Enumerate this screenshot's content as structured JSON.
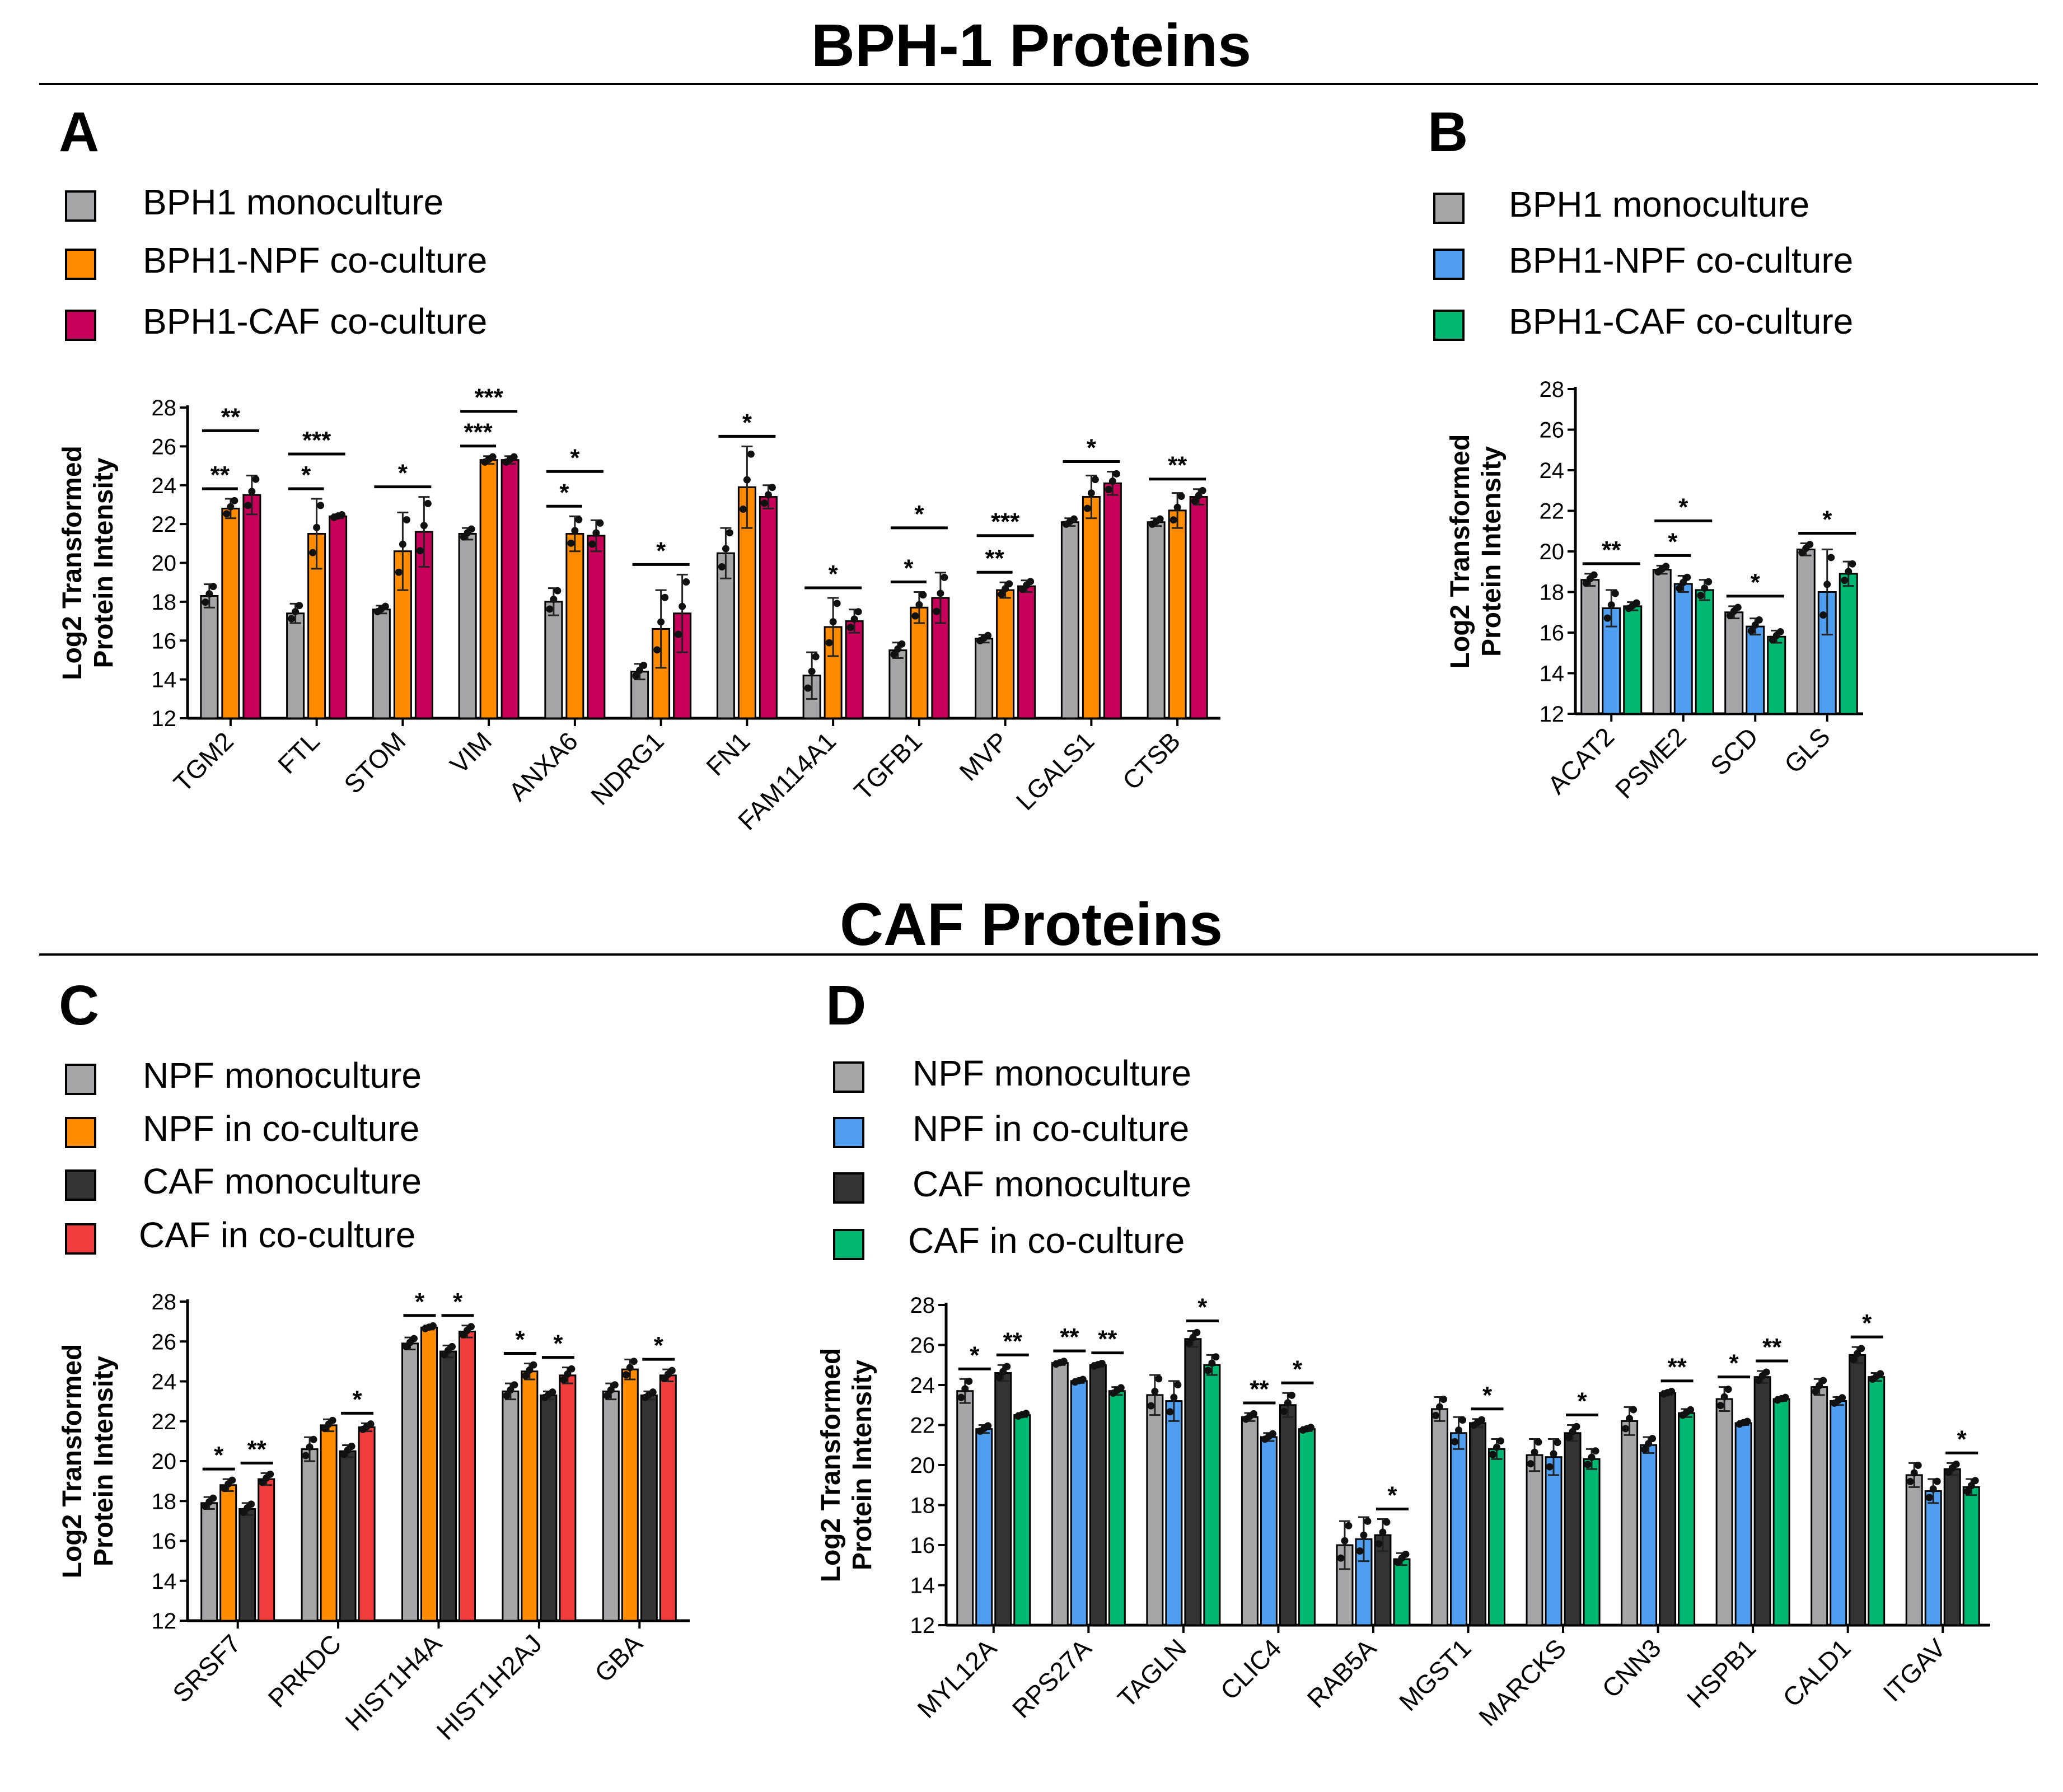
{
  "sections": [
    {
      "title": "BPH-1 Proteins"
    },
    {
      "title": "CAF Proteins"
    }
  ],
  "panels": {
    "A": {
      "letter": "A",
      "legend": [
        "BPH1 monoculture",
        "BPH1-NPF co-culture",
        "BPH1-CAF co-culture"
      ],
      "colors": [
        "#a6a6a8",
        "#ff8c00",
        "#c7005a"
      ]
    },
    "B": {
      "letter": "B",
      "legend": [
        "BPH1 monoculture",
        "BPH1-NPF co-culture",
        "BPH1-CAF co-culture"
      ],
      "colors": [
        "#a6a6a8",
        "#4f9ef0",
        "#00b871"
      ]
    },
    "C": {
      "letter": "C",
      "legend": [
        "NPF monoculture",
        "NPF in co-culture",
        "CAF monoculture",
        "CAF in co-culture"
      ],
      "colors": [
        "#a6a6a8",
        "#ff8c00",
        "#333333",
        "#f03c3c"
      ]
    },
    "D": {
      "letter": "D",
      "legend": [
        "NPF monoculture",
        "NPF in co-culture",
        "CAF monoculture",
        "CAF in co-culture"
      ],
      "colors": [
        "#a6a6a8",
        "#4f9ef0",
        "#333333",
        "#00b871"
      ]
    }
  },
  "chart_data": [
    {
      "panel": "A",
      "type": "bar",
      "ylabel": "Log2 Transformed Protein Intensity",
      "ylim": [
        12,
        28
      ],
      "yticks": [
        12,
        14,
        16,
        18,
        20,
        22,
        24,
        26,
        28
      ],
      "categories": [
        "TGM2",
        "FTL",
        "STOM",
        "VIM",
        "ANXA6",
        "NDRG1",
        "FN1",
        "FAM114A1",
        "TGFB1",
        "MVP",
        "LGALS1",
        "CTSB"
      ],
      "series": [
        {
          "name": "BPH1 monoculture",
          "values": [
            18.3,
            17.4,
            17.6,
            21.5,
            18.0,
            14.4,
            20.5,
            14.2,
            15.5,
            16.1,
            22.1,
            22.1
          ],
          "err": [
            0.6,
            0.5,
            0.2,
            0.3,
            0.7,
            0.4,
            1.3,
            1.2,
            0.4,
            0.2,
            0.2,
            0.2
          ]
        },
        {
          "name": "BPH1-NPF co-culture",
          "values": [
            22.8,
            21.5,
            20.6,
            25.3,
            21.5,
            16.6,
            23.9,
            16.7,
            17.7,
            18.6,
            23.4,
            22.7
          ],
          "err": [
            0.5,
            1.8,
            2.0,
            0.2,
            0.9,
            2.0,
            2.1,
            1.5,
            0.8,
            0.4,
            1.1,
            0.9
          ]
        },
        {
          "name": "BPH1-CAF co-culture",
          "values": [
            23.5,
            22.4,
            21.6,
            25.3,
            21.4,
            17.4,
            23.4,
            17.0,
            18.2,
            18.8,
            24.1,
            23.4
          ],
          "err": [
            1.0,
            0.1,
            1.8,
            0.2,
            0.8,
            2.0,
            0.6,
            0.6,
            1.3,
            0.3,
            0.6,
            0.4
          ]
        }
      ],
      "annotations": [
        {
          "category": 0,
          "from": 0,
          "to": 1,
          "level": 1,
          "text": "**"
        },
        {
          "category": 0,
          "from": 0,
          "to": 2,
          "level": 2,
          "text": "**"
        },
        {
          "category": 1,
          "from": 0,
          "to": 1,
          "level": 1,
          "text": "*"
        },
        {
          "category": 1,
          "from": 0,
          "to": 2,
          "level": 2,
          "text": "***"
        },
        {
          "category": 2,
          "from": 0,
          "to": 2,
          "level": 1,
          "text": "*"
        },
        {
          "category": 3,
          "from": 0,
          "to": 1,
          "level": 1,
          "text": "***"
        },
        {
          "category": 3,
          "from": 0,
          "to": 2,
          "level": 2,
          "text": "***"
        },
        {
          "category": 4,
          "from": 0,
          "to": 1,
          "level": 1,
          "text": "*"
        },
        {
          "category": 4,
          "from": 0,
          "to": 2,
          "level": 2,
          "text": "*"
        },
        {
          "category": 5,
          "from": 0,
          "to": 2,
          "level": 1,
          "text": "*"
        },
        {
          "category": 6,
          "from": 0,
          "to": 2,
          "level": 1,
          "text": "*"
        },
        {
          "category": 7,
          "from": 0,
          "to": 2,
          "level": 1,
          "text": "*"
        },
        {
          "category": 8,
          "from": 0,
          "to": 1,
          "level": 1,
          "text": "*"
        },
        {
          "category": 8,
          "from": 0,
          "to": 2,
          "level": 2,
          "text": "*"
        },
        {
          "category": 9,
          "from": 0,
          "to": 1,
          "level": 1,
          "text": "**"
        },
        {
          "category": 9,
          "from": 0,
          "to": 2,
          "level": 2,
          "text": "***"
        },
        {
          "category": 10,
          "from": 0,
          "to": 2,
          "level": 1,
          "text": "*"
        },
        {
          "category": 11,
          "from": 0,
          "to": 2,
          "level": 1,
          "text": "**"
        }
      ]
    },
    {
      "panel": "B",
      "type": "bar",
      "ylabel": "Log2 Transformed Protein Intensity",
      "ylim": [
        12,
        28
      ],
      "yticks": [
        12,
        14,
        16,
        18,
        20,
        22,
        24,
        26,
        28
      ],
      "categories": [
        "ACAT2",
        "PSME2",
        "SCD",
        "GLS"
      ],
      "series": [
        {
          "name": "BPH1 monoculture",
          "values": [
            18.6,
            19.1,
            17.0,
            20.1
          ],
          "err": [
            0.3,
            0.2,
            0.3,
            0.3
          ]
        },
        {
          "name": "BPH1-NPF co-culture",
          "values": [
            17.2,
            18.4,
            16.3,
            18.0
          ],
          "err": [
            0.9,
            0.4,
            0.4,
            2.1
          ]
        },
        {
          "name": "BPH1-CAF co-culture",
          "values": [
            17.3,
            18.1,
            15.8,
            18.9
          ],
          "err": [
            0.2,
            0.5,
            0.3,
            0.6
          ]
        }
      ],
      "annotations": [
        {
          "category": 0,
          "from": 0,
          "to": 2,
          "level": 1,
          "text": "**"
        },
        {
          "category": 1,
          "from": 0,
          "to": 1,
          "level": 1,
          "text": "*"
        },
        {
          "category": 1,
          "from": 0,
          "to": 2,
          "level": 2,
          "text": "*"
        },
        {
          "category": 2,
          "from": 0,
          "to": 2,
          "level": 1,
          "text": "*"
        },
        {
          "category": 3,
          "from": 0,
          "to": 2,
          "level": 1,
          "text": "*"
        }
      ]
    },
    {
      "panel": "C",
      "type": "bar",
      "ylabel": "Log2 Transformed Protein Intensity",
      "ylim": [
        12,
        28
      ],
      "yticks": [
        12,
        14,
        16,
        18,
        20,
        22,
        24,
        26,
        28
      ],
      "categories": [
        "SRSF7",
        "PRKDC",
        "HIST1H4A",
        "HIST1H2AJ",
        "GBA"
      ],
      "series": [
        {
          "name": "NPF monoculture",
          "values": [
            17.9,
            20.6,
            25.9,
            23.5,
            23.5
          ],
          "err": [
            0.3,
            0.6,
            0.3,
            0.4,
            0.4
          ]
        },
        {
          "name": "NPF in co-culture",
          "values": [
            18.8,
            21.8,
            26.7,
            24.5,
            24.6
          ],
          "err": [
            0.3,
            0.3,
            0.1,
            0.4,
            0.5
          ]
        },
        {
          "name": "CAF monoculture",
          "values": [
            17.6,
            20.5,
            25.5,
            23.3,
            23.3
          ],
          "err": [
            0.3,
            0.3,
            0.3,
            0.2,
            0.2
          ]
        },
        {
          "name": "CAF in co-culture",
          "values": [
            19.1,
            21.7,
            26.5,
            24.3,
            24.3
          ],
          "err": [
            0.3,
            0.2,
            0.3,
            0.4,
            0.3
          ]
        }
      ],
      "annotations": [
        {
          "category": 0,
          "from": 0,
          "to": 1,
          "level": 1,
          "text": "*"
        },
        {
          "category": 0,
          "from": 2,
          "to": 3,
          "level": 1,
          "text": "**"
        },
        {
          "category": 1,
          "from": 2,
          "to": 3,
          "level": 1,
          "text": "*"
        },
        {
          "category": 2,
          "from": 0,
          "to": 1,
          "level": 1,
          "text": "*"
        },
        {
          "category": 2,
          "from": 2,
          "to": 3,
          "level": 1,
          "text": "*"
        },
        {
          "category": 3,
          "from": 0,
          "to": 1,
          "level": 1,
          "text": "*"
        },
        {
          "category": 3,
          "from": 2,
          "to": 3,
          "level": 1,
          "text": "*"
        },
        {
          "category": 4,
          "from": 2,
          "to": 3,
          "level": 1,
          "text": "*"
        }
      ]
    },
    {
      "panel": "D",
      "type": "bar",
      "ylabel": "Log2 Transformed Protein Intensity",
      "ylim": [
        12,
        28
      ],
      "yticks": [
        12,
        14,
        16,
        18,
        20,
        22,
        24,
        26,
        28
      ],
      "categories": [
        "MYL12A",
        "RPS27A",
        "TAGLN",
        "CLIC4",
        "RAB5A",
        "MGST1",
        "MARCKS",
        "CNN3",
        "HSPB1",
        "CALD1",
        "ITGAV"
      ],
      "series": [
        {
          "name": "NPF monoculture",
          "values": [
            23.7,
            25.1,
            23.5,
            22.4,
            16.0,
            22.8,
            20.5,
            22.2,
            23.3,
            23.9,
            19.5
          ],
          "err": [
            0.6,
            0.1,
            1.0,
            0.2,
            1.2,
            0.6,
            0.8,
            0.7,
            0.6,
            0.4,
            0.6
          ]
        },
        {
          "name": "NPF in co-culture",
          "values": [
            21.8,
            24.2,
            23.2,
            21.4,
            16.3,
            21.6,
            20.4,
            21.0,
            22.1,
            23.2,
            18.7
          ],
          "err": [
            0.2,
            0.1,
            1.0,
            0.2,
            1.1,
            0.8,
            0.9,
            0.4,
            0.1,
            0.2,
            0.6
          ]
        },
        {
          "name": "CAF monoculture",
          "values": [
            24.6,
            25.0,
            26.3,
            23.0,
            16.5,
            22.1,
            21.6,
            23.6,
            24.4,
            25.5,
            19.8
          ],
          "err": [
            0.4,
            0.1,
            0.4,
            0.6,
            0.8,
            0.2,
            0.4,
            0.1,
            0.3,
            0.4,
            0.3
          ]
        },
        {
          "name": "CAF in co-culture",
          "values": [
            22.5,
            23.7,
            25.0,
            21.8,
            15.3,
            20.8,
            20.3,
            22.6,
            23.3,
            24.4,
            18.9
          ],
          "err": [
            0.1,
            0.2,
            0.5,
            0.1,
            0.3,
            0.5,
            0.5,
            0.2,
            0.1,
            0.2,
            0.4
          ]
        }
      ],
      "annotations": [
        {
          "category": 0,
          "from": 0,
          "to": 1,
          "level": 1,
          "text": "*"
        },
        {
          "category": 0,
          "from": 2,
          "to": 3,
          "level": 1,
          "text": "**"
        },
        {
          "category": 1,
          "from": 0,
          "to": 1,
          "level": 1,
          "text": "**"
        },
        {
          "category": 1,
          "from": 2,
          "to": 3,
          "level": 1,
          "text": "**"
        },
        {
          "category": 2,
          "from": 2,
          "to": 3,
          "level": 1,
          "text": "*"
        },
        {
          "category": 3,
          "from": 0,
          "to": 1,
          "level": 1,
          "text": "**"
        },
        {
          "category": 3,
          "from": 2,
          "to": 3,
          "level": 1,
          "text": "*"
        },
        {
          "category": 4,
          "from": 2,
          "to": 3,
          "level": 1,
          "text": "*"
        },
        {
          "category": 5,
          "from": 2,
          "to": 3,
          "level": 1,
          "text": "*"
        },
        {
          "category": 6,
          "from": 2,
          "to": 3,
          "level": 1,
          "text": "*"
        },
        {
          "category": 7,
          "from": 2,
          "to": 3,
          "level": 1,
          "text": "**"
        },
        {
          "category": 8,
          "from": 0,
          "to": 1,
          "level": 1,
          "text": "*"
        },
        {
          "category": 8,
          "from": 2,
          "to": 3,
          "level": 1,
          "text": "**"
        },
        {
          "category": 9,
          "from": 2,
          "to": 3,
          "level": 1,
          "text": "*"
        },
        {
          "category": 10,
          "from": 2,
          "to": 3,
          "level": 1,
          "text": "*"
        }
      ]
    }
  ]
}
